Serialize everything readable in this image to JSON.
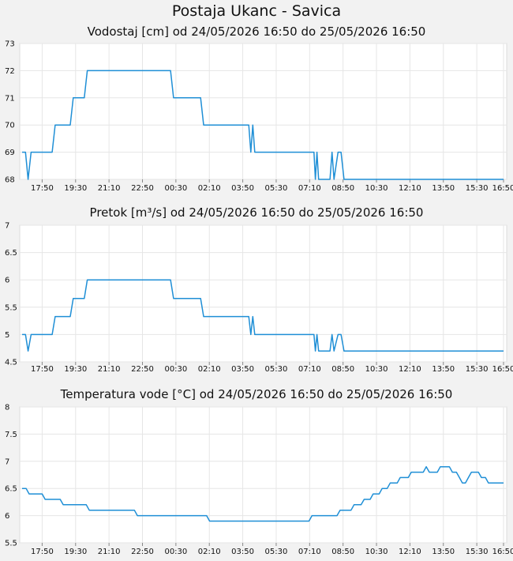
{
  "page_title": "Postaja Ukanc - Savica",
  "colors": {
    "line": "#1f8fd6",
    "grid": "#e6e6e6",
    "plot_bg": "#ffffff",
    "page_bg": "#f2f2f2"
  },
  "x_tick_labels": [
    "17:50",
    "19:30",
    "21:10",
    "22:50",
    "00:30",
    "02:10",
    "03:50",
    "05:30",
    "07:10",
    "08:50",
    "10:30",
    "12:10",
    "13:50",
    "15:30",
    "16:50"
  ],
  "chart_data": [
    {
      "type": "line",
      "title": "Vodostaj [cm] od 24/05/2026 16:50 do 25/05/2026 16:50",
      "ylim": [
        68,
        73
      ],
      "y_ticks": [
        "68",
        "69",
        "70",
        "71",
        "72",
        "73"
      ],
      "grid": true,
      "x_range_hours": [
        0,
        24
      ],
      "series": [
        {
          "color": "#1f8fd6",
          "points": [
            [
              0,
              69
            ],
            [
              0.17,
              69
            ],
            [
              0.3,
              68
            ],
            [
              0.45,
              69
            ],
            [
              1.5,
              69
            ],
            [
              1.65,
              70
            ],
            [
              2.4,
              70
            ],
            [
              2.55,
              71
            ],
            [
              3.1,
              71
            ],
            [
              3.25,
              72
            ],
            [
              7.4,
              72
            ],
            [
              7.55,
              71
            ],
            [
              8.9,
              71
            ],
            [
              9.05,
              70
            ],
            [
              11.3,
              70
            ],
            [
              11.4,
              69
            ],
            [
              11.5,
              70
            ],
            [
              11.6,
              69
            ],
            [
              14.55,
              69
            ],
            [
              14.62,
              68
            ],
            [
              14.7,
              69
            ],
            [
              14.78,
              68
            ],
            [
              15.35,
              68
            ],
            [
              15.45,
              69
            ],
            [
              15.55,
              68
            ],
            [
              15.75,
              69
            ],
            [
              15.9,
              69
            ],
            [
              16.05,
              68
            ],
            [
              24,
              68
            ]
          ]
        }
      ]
    },
    {
      "type": "line",
      "title": "Pretok [m³/s] od 24/05/2026 16:50 do 25/05/2026 16:50",
      "ylim": [
        4.5,
        7
      ],
      "y_ticks": [
        "4.5",
        "5",
        "5.5",
        "6",
        "6.5",
        "7"
      ],
      "grid": true,
      "x_range_hours": [
        0,
        24
      ],
      "series": [
        {
          "color": "#1f8fd6",
          "points": [
            [
              0,
              5
            ],
            [
              0.17,
              5
            ],
            [
              0.3,
              4.7
            ],
            [
              0.45,
              5
            ],
            [
              1.5,
              5
            ],
            [
              1.65,
              5.33
            ],
            [
              2.4,
              5.33
            ],
            [
              2.55,
              5.66
            ],
            [
              3.1,
              5.66
            ],
            [
              3.25,
              6
            ],
            [
              7.4,
              6
            ],
            [
              7.55,
              5.66
            ],
            [
              8.9,
              5.66
            ],
            [
              9.05,
              5.33
            ],
            [
              11.3,
              5.33
            ],
            [
              11.4,
              5
            ],
            [
              11.5,
              5.33
            ],
            [
              11.6,
              5
            ],
            [
              14.55,
              5
            ],
            [
              14.62,
              4.7
            ],
            [
              14.7,
              5
            ],
            [
              14.78,
              4.7
            ],
            [
              15.35,
              4.7
            ],
            [
              15.45,
              5
            ],
            [
              15.55,
              4.7
            ],
            [
              15.75,
              5
            ],
            [
              15.9,
              5
            ],
            [
              16.05,
              4.7
            ],
            [
              24,
              4.7
            ]
          ]
        }
      ]
    },
    {
      "type": "line",
      "title": "Temperatura vode [°C] od 24/05/2026 16:50 do 25/05/2026 16:50",
      "ylim": [
        5.5,
        8
      ],
      "y_ticks": [
        "5.5",
        "6",
        "6.5",
        "7",
        "7.5",
        "8"
      ],
      "grid": true,
      "x_range_hours": [
        0,
        24
      ],
      "series": [
        {
          "color": "#1f8fd6",
          "points": [
            [
              0,
              6.5
            ],
            [
              0.2,
              6.5
            ],
            [
              0.35,
              6.4
            ],
            [
              1,
              6.4
            ],
            [
              1.15,
              6.3
            ],
            [
              1.9,
              6.3
            ],
            [
              2.05,
              6.2
            ],
            [
              3.2,
              6.2
            ],
            [
              3.35,
              6.1
            ],
            [
              5.6,
              6.1
            ],
            [
              5.75,
              6
            ],
            [
              9.2,
              6
            ],
            [
              9.35,
              5.9
            ],
            [
              14.3,
              5.9
            ],
            [
              14.45,
              6
            ],
            [
              15.7,
              6
            ],
            [
              15.85,
              6.1
            ],
            [
              16.4,
              6.1
            ],
            [
              16.55,
              6.2
            ],
            [
              16.9,
              6.2
            ],
            [
              17.05,
              6.3
            ],
            [
              17.35,
              6.3
            ],
            [
              17.5,
              6.4
            ],
            [
              17.8,
              6.4
            ],
            [
              17.95,
              6.5
            ],
            [
              18.2,
              6.5
            ],
            [
              18.35,
              6.6
            ],
            [
              18.7,
              6.6
            ],
            [
              18.85,
              6.7
            ],
            [
              19.25,
              6.7
            ],
            [
              19.4,
              6.8
            ],
            [
              20.0,
              6.8
            ],
            [
              20.15,
              6.9
            ],
            [
              20.3,
              6.8
            ],
            [
              20.7,
              6.8
            ],
            [
              20.85,
              6.9
            ],
            [
              21.3,
              6.9
            ],
            [
              21.45,
              6.8
            ],
            [
              21.65,
              6.8
            ],
            [
              21.8,
              6.7
            ],
            [
              21.95,
              6.6
            ],
            [
              22.1,
              6.6
            ],
            [
              22.25,
              6.7
            ],
            [
              22.4,
              6.8
            ],
            [
              22.75,
              6.8
            ],
            [
              22.9,
              6.7
            ],
            [
              23.1,
              6.7
            ],
            [
              23.25,
              6.6
            ],
            [
              24,
              6.6
            ]
          ]
        }
      ]
    }
  ]
}
